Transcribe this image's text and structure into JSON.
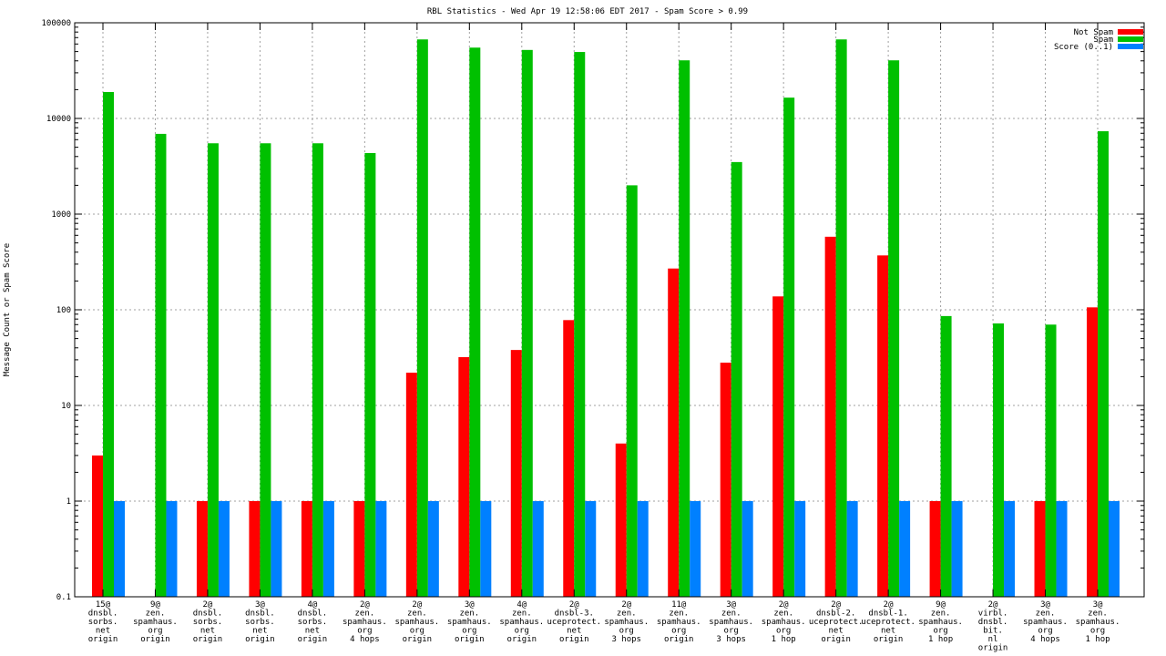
{
  "chart_data": {
    "type": "bar",
    "title": "RBL Statistics - Wed Apr 19 12:58:06 EDT 2017 - Spam Score > 0.99",
    "xlabel": "",
    "ylabel": "Message Count or Spam Score",
    "yscale": "log",
    "ylim": [
      0.1,
      100000
    ],
    "yticks": [
      "0.1",
      "1",
      "10",
      "100",
      "1000",
      "10000",
      "100000"
    ],
    "grid": true,
    "legend_position": "top-right",
    "categories": [
      [
        "15@",
        "dnsbl.",
        "sorbs.",
        "net",
        "origin"
      ],
      [
        "9@",
        "zen.",
        "spamhaus.",
        "org",
        "origin"
      ],
      [
        "2@",
        "dnsbl.",
        "sorbs.",
        "net",
        "origin"
      ],
      [
        "3@",
        "dnsbl.",
        "sorbs.",
        "net",
        "origin"
      ],
      [
        "4@",
        "dnsbl.",
        "sorbs.",
        "net",
        "origin"
      ],
      [
        "2@",
        "zen.",
        "spamhaus.",
        "org",
        "4 hops"
      ],
      [
        "2@",
        "zen.",
        "spamhaus.",
        "org",
        "origin"
      ],
      [
        "3@",
        "zen.",
        "spamhaus.",
        "org",
        "origin"
      ],
      [
        "4@",
        "zen.",
        "spamhaus.",
        "org",
        "origin"
      ],
      [
        "2@",
        "dnsbl-3.",
        "uceprotect.",
        "net",
        "origin"
      ],
      [
        "2@",
        "zen.",
        "spamhaus.",
        "org",
        "3 hops"
      ],
      [
        "11@",
        "zen.",
        "spamhaus.",
        "org",
        "origin"
      ],
      [
        "3@",
        "zen.",
        "spamhaus.",
        "org",
        "3 hops"
      ],
      [
        "2@",
        "zen.",
        "spamhaus.",
        "org",
        "1 hop"
      ],
      [
        "2@",
        "dnsbl-2.",
        "uceprotect.",
        "net",
        "origin"
      ],
      [
        "2@",
        "dnsbl-1.",
        "uceprotect.",
        "net",
        "origin"
      ],
      [
        "9@",
        "zen.",
        "spamhaus.",
        "org",
        "1 hop"
      ],
      [
        "2@",
        "virbl.",
        "dnsbl.",
        "bit.",
        "nl",
        "origin"
      ],
      [
        "3@",
        "zen.",
        "spamhaus.",
        "org",
        "4 hops"
      ],
      [
        "3@",
        "zen.",
        "spamhaus.",
        "org",
        "1 hop"
      ]
    ],
    "series": [
      {
        "name": "Not Spam",
        "color": "#ff0000",
        "values": [
          3,
          0,
          1,
          1,
          1,
          1,
          22,
          32,
          38,
          78,
          4,
          270,
          28,
          138,
          580,
          370,
          1,
          0,
          1,
          106
        ]
      },
      {
        "name": "Spam",
        "color": "#00c000",
        "values": [
          18900,
          6900,
          5500,
          5500,
          5500,
          4350,
          67000,
          55000,
          52000,
          49500,
          2000,
          40500,
          3500,
          16500,
          67000,
          40500,
          86,
          72,
          70,
          7350
        ]
      },
      {
        "name": "Score (0..1)",
        "color": "#0080ff",
        "values": [
          1,
          1,
          1,
          1,
          1,
          1,
          1,
          1,
          1,
          1,
          1,
          1,
          1,
          1,
          1,
          1,
          1,
          1,
          1,
          1
        ]
      }
    ]
  }
}
